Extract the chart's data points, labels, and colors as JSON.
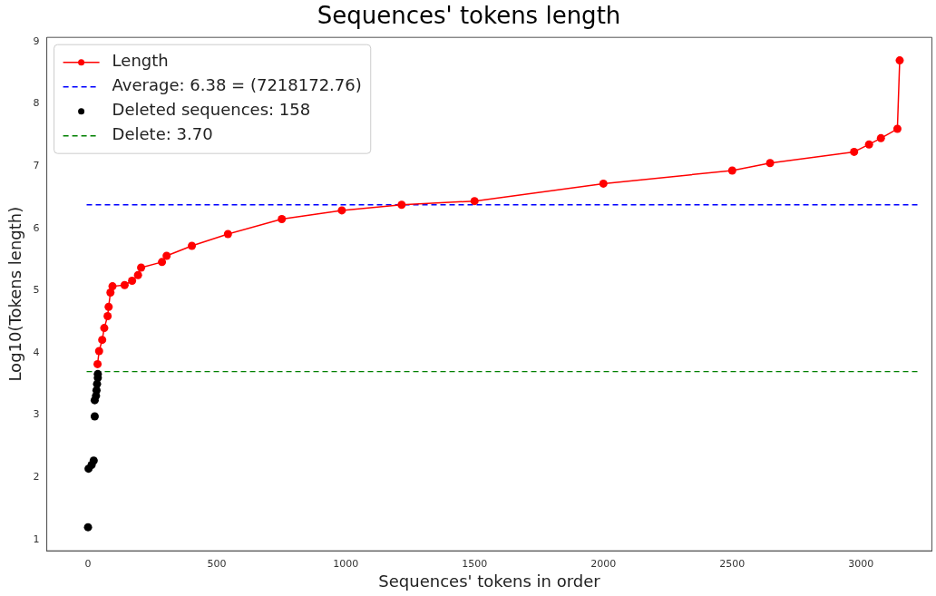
{
  "chart_data": {
    "type": "line",
    "title": "Sequences' tokens length",
    "xlabel": "Sequences' tokens in order",
    "ylabel": "Log10(Tokens length)",
    "series": [
      {
        "name": "Length",
        "color": "#ff0000",
        "x": [
          37,
          43,
          55,
          63,
          76,
          80,
          87,
          95,
          142,
          171,
          194,
          206,
          287,
          305,
          403,
          543,
          752,
          985,
          1217,
          1500,
          2000,
          2500,
          2647,
          2973,
          3031,
          3077,
          3141,
          3150
        ],
        "values": [
          3.82,
          4.03,
          4.21,
          4.4,
          4.59,
          4.74,
          4.97,
          5.07,
          5.09,
          5.16,
          5.25,
          5.37,
          5.46,
          5.56,
          5.72,
          5.91,
          6.15,
          6.29,
          6.38,
          6.44,
          6.72,
          6.93,
          7.05,
          7.23,
          7.35,
          7.45,
          7.6,
          8.7
        ]
      },
      {
        "name": "Deleted sequences: 158",
        "type": "scatter",
        "color": "#000000",
        "x": [
          0,
          2,
          14,
          22,
          26,
          26,
          31,
          33,
          35,
          38,
          38
        ],
        "values": [
          1.2,
          2.14,
          2.2,
          2.27,
          2.98,
          3.24,
          3.31,
          3.4,
          3.5,
          3.6,
          3.66
        ]
      }
    ],
    "ref_lines": [
      {
        "axis": "y",
        "value": 6.38,
        "label": "Average: 6.38 = (7218172.76)",
        "color": "#0000ff",
        "line_style": "dashed"
      },
      {
        "axis": "y",
        "value": 3.7,
        "label": "Delete: 3.70",
        "color": "#008000",
        "line_style": "dashed"
      }
    ],
    "xlim": [
      -160,
      3275
    ],
    "ylim": [
      0.82,
      9.07
    ],
    "xticks": [
      0,
      500,
      1000,
      1500,
      2000,
      2500,
      3000
    ],
    "yticks": [
      1,
      2,
      3,
      4,
      5,
      6,
      7,
      8,
      9
    ],
    "grid": false,
    "legend": "top left",
    "marker": "circle"
  }
}
